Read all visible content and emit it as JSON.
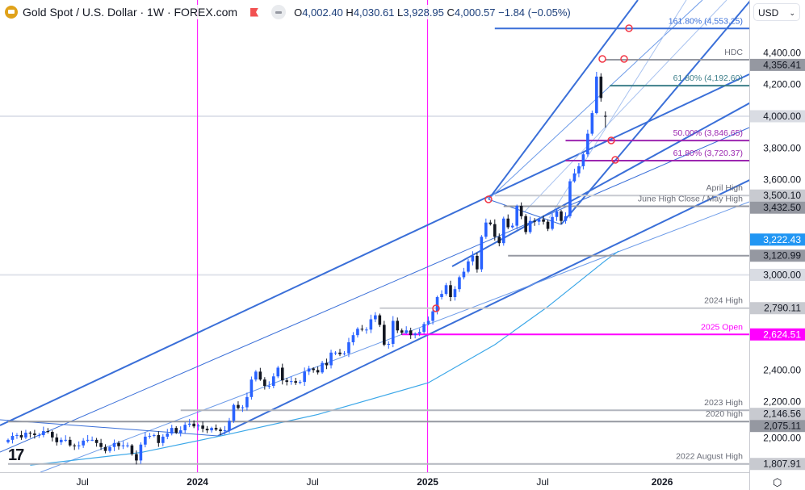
{
  "header": {
    "symbol": "Gold Spot / U.S. Dollar · 1W · FOREX.com",
    "open_label": "O",
    "open": "4,002.40",
    "high_label": "H",
    "high": "4,030.61",
    "low_label": "L",
    "low": "3,928.95",
    "close_label": "C",
    "close": "4,000.57",
    "change": "−1.84 (−0.05%)"
  },
  "currency_selector": "USD",
  "colors": {
    "up": "#2962ff",
    "down": "#131722",
    "ma": "#3ba7e8",
    "channel": "#3a6fd8",
    "magenta": "#ff00ff",
    "purple": "#9c27b0",
    "teal": "#3d7f8a",
    "badge_blue": "#2196f3"
  },
  "chart_data": {
    "type": "candlestick",
    "title": "Gold Spot / U.S. Dollar · 1W · FOREX.com",
    "ylim": [
      1760,
      4640
    ],
    "price_ticks": [
      "4,400.00",
      "4,200.00",
      "4,000.00",
      "3,800.00",
      "3,600.00",
      "3,000.00",
      "2,400.00",
      "2,200.00",
      "2,000.00"
    ],
    "price_tick_values": [
      4400,
      4200,
      4000,
      3800,
      3600,
      3000,
      2400,
      2200,
      2000
    ],
    "time_ticks": [
      {
        "label": "Jul",
        "week": 17
      },
      {
        "label": "2024",
        "week": 43
      },
      {
        "label": "Jul",
        "week": 69
      },
      {
        "label": "2025",
        "week": 95
      },
      {
        "label": "Jul",
        "week": 121
      },
      {
        "label": "2026",
        "week": 148
      }
    ],
    "weekly_closes": [
      1960,
      1985,
      1990,
      1975,
      2005,
      2000,
      1990,
      1990,
      2015,
      2010,
      1975,
      1945,
      1960,
      1960,
      1925,
      1920,
      1925,
      1955,
      1960,
      1960,
      1940,
      1915,
      1890,
      1915,
      1940,
      1920,
      1925,
      1925,
      1870,
      1830,
      1930,
      1980,
      1985,
      1990,
      1940,
      1980,
      2000,
      2035,
      2005,
      2020,
      2055,
      2062,
      2045,
      2050,
      2030,
      2020,
      2035,
      2025,
      2015,
      2020,
      2080,
      2180,
      2160,
      2165,
      2230,
      2340,
      2390,
      2340,
      2300,
      2300,
      2360,
      2415,
      2335,
      2325,
      2330,
      2320,
      2325,
      2390,
      2410,
      2400,
      2385,
      2445,
      2430,
      2510,
      2510,
      2500,
      2505,
      2575,
      2620,
      2660,
      2655,
      2655,
      2720,
      2745,
      2685,
      2560,
      2565,
      2710,
      2650,
      2635,
      2650,
      2620,
      2630,
      2640,
      2690,
      2710,
      2770,
      2860,
      2880,
      2935,
      2860,
      2910,
      2985,
      3020,
      3085,
      3120,
      3035,
      3240,
      3330,
      3320,
      3240,
      3200,
      3355,
      3300,
      3310,
      3435,
      3370,
      3270,
      3340,
      3335,
      3350,
      3335,
      3290,
      3365,
      3400,
      3340,
      3370,
      3590,
      3640,
      3685,
      3760,
      3890,
      4020,
      4250,
      4115,
      4000.57
    ],
    "last_candle": {
      "open": 4002.4,
      "high": 4030.61,
      "low": 3928.95,
      "close": 4000.57
    },
    "levels": [
      {
        "price": 4553.25,
        "label": "161.80% (4,553.25)",
        "color": "#3a6fd8",
        "start_week": 110,
        "badge": ""
      },
      {
        "price": 4356.41,
        "label": "HDC",
        "color": "#9598a1",
        "start_week": 135,
        "badge": "4,356.41"
      },
      {
        "price": 4192.6,
        "label": "61.80% (4,192.60)",
        "color": "#3d7f8a",
        "start_week": 136,
        "badge": ""
      },
      {
        "price": 3846.65,
        "label": "50.00% (3,846.65)",
        "color": "#9c27b0",
        "start_week": 126,
        "badge": ""
      },
      {
        "price": 3720.37,
        "label": "61.80% (3,720.37)",
        "color": "#9c27b0",
        "start_week": 126,
        "badge": ""
      },
      {
        "price": 3500.1,
        "label": "April High",
        "color": "#c8cad0",
        "start_week": 110,
        "badge": "3,500.10"
      },
      {
        "price": 3432.5,
        "label": "June High Close / May High",
        "color": "#9598a1",
        "start_week": 112,
        "badge": "3,432.50"
      },
      {
        "price": 3120.99,
        "label": "",
        "color": "#9598a1",
        "start_week": 113,
        "badge": "3,120.99"
      },
      {
        "price": 2790.11,
        "label": "2024 High",
        "color": "#c8cad0",
        "start_week": 84,
        "badge": "2,790.11"
      },
      {
        "price": 2624.51,
        "label": "2025 Open",
        "color": "#ff00ff",
        "start_week": 89,
        "badge": "2,624.51"
      },
      {
        "price": 2146.56,
        "label": "2023 High",
        "color": "#b2b5be",
        "start_week": 39,
        "badge": "2,146.56"
      },
      {
        "price": 2075.11,
        "label": "2020 high",
        "color": "#9598a1",
        "start_week": 0,
        "badge": "2,075.11"
      },
      {
        "price": 1807.91,
        "label": "2022 August High",
        "color": "#b2b5be",
        "start_week": 0,
        "badge": "1,807.91"
      }
    ],
    "ma_badge": {
      "price": 3222.43,
      "label": "3,222.43"
    },
    "moving_average": [
      [
        5,
        1800
      ],
      [
        30,
        1880
      ],
      [
        49,
        1990
      ],
      [
        70,
        2120
      ],
      [
        95,
        2320
      ],
      [
        110,
        2560
      ],
      [
        122,
        2800
      ],
      [
        135,
        3090
      ],
      [
        138,
        3150
      ]
    ]
  }
}
